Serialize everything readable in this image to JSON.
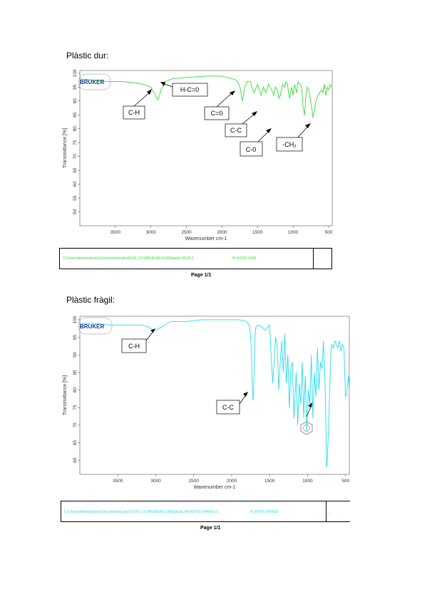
{
  "page": {
    "section1_title": "Plàstic dur:",
    "section2_title": "Plàstic fràgil:",
    "page_label_1": "Page 1/1",
    "page_label_2": "Page 1/1"
  },
  "colors": {
    "spectrum1": "#33dd33",
    "spectrum2": "#22ddee",
    "axis": "#555555",
    "logo": "#1a3a8c"
  },
  "chart_data": [
    {
      "type": "line",
      "title": "",
      "logo": "BRUKER",
      "xlabel": "Wavenumber cm-1",
      "ylabel": "Transmittance [%]",
      "xlim": [
        4000,
        450
      ],
      "ylim": [
        45,
        101
      ],
      "x_ticks": [
        3500,
        3000,
        2500,
        2000,
        1500,
        1000,
        500
      ],
      "x_tick_labels": [
        "3500",
        "3000",
        "2500",
        "2000",
        "1500",
        "1000",
        "500"
      ],
      "y_ticks": [
        100,
        95,
        90,
        85,
        80,
        75,
        70,
        65,
        60,
        55,
        50
      ],
      "y_tick_labels": [
        "100",
        "95",
        "90",
        "85",
        "80",
        "75",
        "70",
        "65",
        "60",
        "55",
        "50"
      ],
      "series": [
        {
          "x": [
            4000,
            3800,
            3600,
            3400,
            3200,
            3100,
            3000,
            2960,
            2940,
            2920,
            2900,
            2880,
            2860,
            2840,
            2820,
            2800,
            2700,
            2500,
            2200,
            2000,
            1850,
            1800,
            1760,
            1740,
            1725,
            1710,
            1700,
            1680,
            1650,
            1600,
            1580,
            1550,
            1500,
            1450,
            1420,
            1400,
            1380,
            1350,
            1300,
            1270,
            1250,
            1220,
            1200,
            1180,
            1150,
            1120,
            1100,
            1080,
            1050,
            1020,
            1000,
            980,
            960,
            950,
            930,
            900,
            880,
            860,
            840,
            820,
            800,
            780,
            760,
            740,
            720,
            700,
            680,
            650,
            600,
            580,
            560,
            540,
            520,
            500,
            480,
            460
          ],
          "y": [
            98,
            97.5,
            97,
            97,
            96.5,
            96,
            95,
            93,
            92.5,
            91,
            90.5,
            92,
            94,
            95,
            96,
            97,
            98,
            98.5,
            99,
            99,
            98,
            97.5,
            96,
            94,
            91,
            90,
            92,
            95,
            97,
            97,
            95,
            93,
            96,
            92,
            95,
            94,
            93,
            96,
            94,
            92,
            95,
            94,
            91,
            92,
            96,
            95,
            97,
            96,
            91,
            95,
            92,
            96,
            94,
            93,
            97,
            96,
            95,
            88,
            85,
            92,
            95,
            94,
            91,
            88,
            84,
            87,
            90,
            92,
            94,
            93,
            96,
            92,
            95,
            94,
            96,
            95
          ]
        }
      ],
      "annotations": [
        "C-H",
        "H-C=0",
        "C=0",
        "C-C",
        "C-0",
        "-CH₂"
      ],
      "footer_path": "C:\\Users\\Administrador\\Documents\\Labo\\DUR_2.0 [BRUKER-DUR]\\plastic+DUR.0",
      "footer_name": "PLASTIC DUR",
      "footer_right": "..."
    },
    {
      "type": "line",
      "title": "",
      "logo": "BRUKER",
      "xlabel": "Wavenumber cm-1",
      "ylabel": "Transmittance [%]",
      "xlim": [
        4000,
        450
      ],
      "ylim": [
        56,
        101
      ],
      "x_ticks": [
        3500,
        3000,
        2500,
        2000,
        1500,
        1000,
        500
      ],
      "x_tick_labels": [
        "3500",
        "3000",
        "2500",
        "2000",
        "1500",
        "1000",
        "500"
      ],
      "y_ticks": [
        100,
        95,
        90,
        85,
        80,
        75,
        70,
        65,
        60
      ],
      "y_tick_labels": [
        "100",
        "95",
        "90",
        "85",
        "80",
        "75",
        "70",
        "65",
        "60"
      ],
      "series": [
        {
          "x": [
            4000,
            3800,
            3600,
            3400,
            3200,
            3100,
            3060,
            3030,
            3000,
            2960,
            2920,
            2880,
            2850,
            2800,
            2600,
            2400,
            2200,
            2000,
            1900,
            1800,
            1760,
            1740,
            1730,
            1720,
            1710,
            1700,
            1690,
            1680,
            1650,
            1600,
            1560,
            1500,
            1480,
            1460,
            1440,
            1420,
            1400,
            1380,
            1360,
            1340,
            1320,
            1300,
            1280,
            1260,
            1240,
            1220,
            1200,
            1180,
            1160,
            1150,
            1130,
            1110,
            1090,
            1070,
            1050,
            1030,
            1010,
            990,
            970,
            950,
            930,
            910,
            890,
            870,
            850,
            830,
            810,
            790,
            770,
            760,
            750,
            740,
            720,
            700,
            690,
            680,
            660,
            640,
            620,
            600,
            580,
            560,
            540,
            520,
            500,
            480,
            460,
            450
          ],
          "y": [
            99,
            99,
            98.5,
            98.5,
            98.5,
            98,
            97.5,
            97,
            97,
            97.5,
            98,
            98.5,
            99,
            99.5,
            99.5,
            100,
            100,
            100,
            100,
            99.5,
            98,
            92,
            82,
            77,
            80,
            90,
            96,
            98,
            98.5,
            98,
            97,
            98.5,
            90,
            82,
            88,
            95,
            93,
            80,
            88,
            94,
            85,
            96,
            82,
            90,
            75,
            86,
            88,
            72,
            80,
            85,
            70,
            82,
            76,
            88,
            72,
            84,
            68,
            80,
            76,
            90,
            72,
            85,
            78,
            92,
            80,
            88,
            86,
            94,
            82,
            72,
            58,
            60,
            72,
            86,
            92,
            93,
            92,
            94,
            93,
            92,
            94,
            91,
            93,
            92,
            78,
            80,
            84,
            80
          ]
        }
      ],
      "annotations": [
        "C-H",
        "C-C"
      ],
      "footer_path": "C:\\Users\\Administrador\\Documents\\Labo\\STJQ_1.0 [BRUKER-DUR]\\plastic+PLASTIC FRAGIL.0",
      "footer_name": "PLASTIC FRAGIL",
      "footer_right": "..."
    }
  ]
}
